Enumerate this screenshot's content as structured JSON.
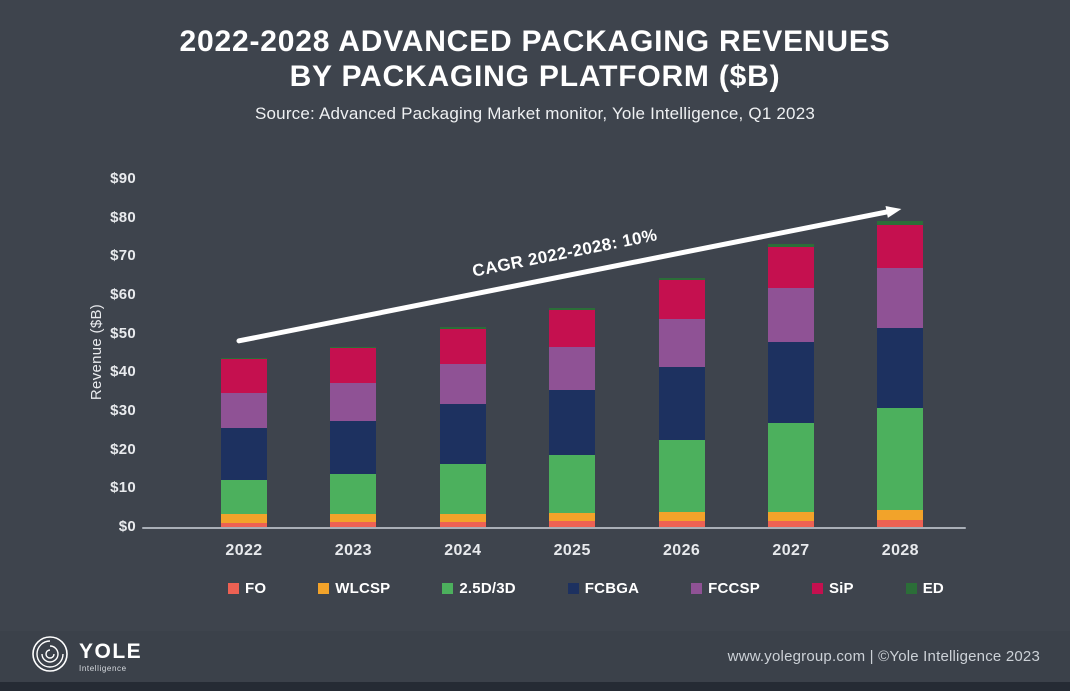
{
  "page": {
    "background": "#3e444d",
    "footer_strip_color": "#252b34",
    "axis_color": "#a9afb7",
    "arrow_color": "#ffffff"
  },
  "header": {
    "title_line1": "2022-2028 ADVANCED PACKAGING REVENUES",
    "title_line2": "BY PACKAGING PLATFORM ($B)",
    "subtitle": "Source: Advanced Packaging Market monitor, Yole Intelligence, Q1 2023"
  },
  "chart_data": {
    "type": "bar",
    "stacked": true,
    "title": "2022-2028 Advanced Packaging Revenues by Packaging Platform ($B)",
    "categories": [
      "2022",
      "2023",
      "2024",
      "2025",
      "2026",
      "2027",
      "2028"
    ],
    "series": [
      {
        "name": "FO",
        "color": "#ed6153",
        "values": [
          1.4,
          1.5,
          1.5,
          1.7,
          1.8,
          1.8,
          2.1
        ]
      },
      {
        "name": "WLCSP",
        "color": "#f2a32a",
        "values": [
          2.2,
          2.1,
          2.1,
          2.1,
          2.3,
          2.3,
          2.6
        ]
      },
      {
        "name": "2.5D/3D",
        "color": "#4cb05d",
        "values": [
          8.8,
          10.4,
          12.9,
          15.0,
          18.6,
          23.0,
          26.3
        ]
      },
      {
        "name": "FCBGA",
        "color": "#1d3160",
        "values": [
          13.4,
          13.6,
          15.5,
          17.0,
          18.9,
          20.9,
          20.7
        ]
      },
      {
        "name": "FCCSP",
        "color": "#8f5295",
        "values": [
          9.1,
          9.9,
          10.3,
          11.1,
          12.4,
          14.2,
          15.5
        ]
      },
      {
        "name": "SiP",
        "color": "#c5104f",
        "values": [
          8.9,
          9.0,
          9.3,
          9.6,
          10.1,
          10.6,
          11.1
        ]
      },
      {
        "name": "ED",
        "color": "#2b6e38",
        "values": [
          0.2,
          0.2,
          0.3,
          0.4,
          0.5,
          0.7,
          1.0
        ]
      }
    ],
    "totals": [
      44.0,
      46.7,
      51.9,
      56.9,
      64.6,
      73.5,
      79.3
    ],
    "xlabel": "",
    "ylabel": "Revenue ($B)",
    "ylim": [
      0,
      90
    ],
    "ytick_step": 10,
    "yticks": [
      "$0",
      "$10",
      "$20",
      "$30",
      "$40",
      "$50",
      "$60",
      "$70",
      "$80",
      "$90"
    ],
    "grid": false,
    "legend_position": "bottom",
    "annotation": {
      "text": "CAGR 2022-2028: 10%",
      "from_value": 48.4,
      "to_value": 82.5
    }
  },
  "footer": {
    "logo_name": "YOLE",
    "logo_subtext": "Intelligence",
    "right_text": "www.yolegroup.com | ©Yole Intelligence 2023"
  }
}
